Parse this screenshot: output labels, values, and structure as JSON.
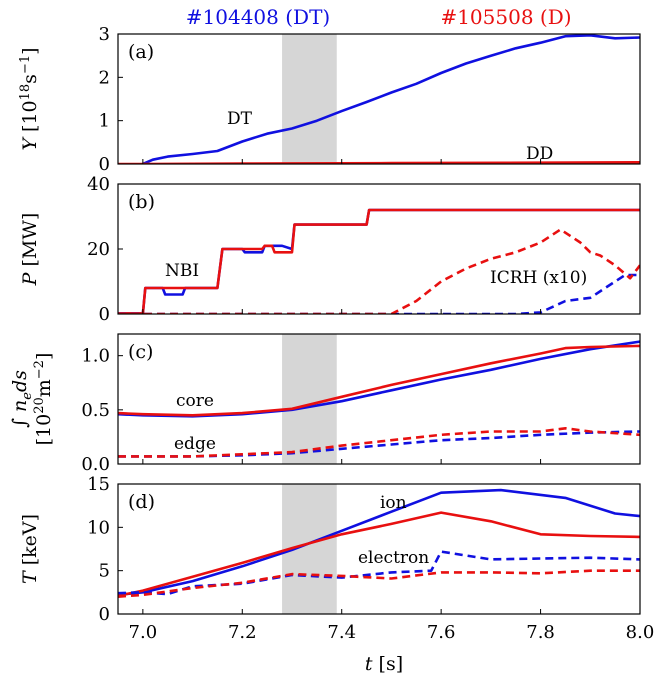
{
  "title_left": "#104408 (DT)",
  "title_right": "#105508 (D)",
  "colors": {
    "dt": "#1010e0",
    "d": "#e81010",
    "shade": "#d6d6d6"
  },
  "xlabel": "t [s]",
  "chart_data": [
    {
      "type": "line",
      "panel": "(a)",
      "ylabel": "Y [10^18 s^-1]",
      "ylim": [
        0,
        3
      ],
      "yticks": [
        "0",
        "1",
        "2",
        "3"
      ],
      "xlim": [
        6.95,
        8.0
      ],
      "shade": [
        7.28,
        7.39
      ],
      "annotations": [
        "DT",
        "DD"
      ],
      "series": [
        {
          "name": "DT",
          "color": "dt",
          "dash": false,
          "points": [
            [
              7.0,
              0.0
            ],
            [
              7.02,
              0.1
            ],
            [
              7.05,
              0.17
            ],
            [
              7.1,
              0.23
            ],
            [
              7.15,
              0.3
            ],
            [
              7.2,
              0.52
            ],
            [
              7.25,
              0.7
            ],
            [
              7.3,
              0.82
            ],
            [
              7.35,
              1.0
            ],
            [
              7.4,
              1.22
            ],
            [
              7.45,
              1.43
            ],
            [
              7.5,
              1.65
            ],
            [
              7.55,
              1.85
            ],
            [
              7.6,
              2.1
            ],
            [
              7.65,
              2.32
            ],
            [
              7.7,
              2.5
            ],
            [
              7.75,
              2.67
            ],
            [
              7.8,
              2.8
            ],
            [
              7.85,
              2.95
            ],
            [
              7.9,
              2.97
            ],
            [
              7.95,
              2.9
            ],
            [
              8.0,
              2.92
            ]
          ]
        },
        {
          "name": "DD",
          "color": "d",
          "dash": false,
          "points": [
            [
              6.95,
              0.0
            ],
            [
              7.0,
              0.0
            ],
            [
              7.2,
              0.01
            ],
            [
              7.5,
              0.02
            ],
            [
              7.8,
              0.03
            ],
            [
              8.0,
              0.04
            ]
          ]
        }
      ]
    },
    {
      "type": "line",
      "panel": "(b)",
      "ylabel": "P [MW]",
      "ylim": [
        0,
        40
      ],
      "yticks": [
        "0",
        "20",
        "40"
      ],
      "xlim": [
        6.95,
        8.0
      ],
      "shade": null,
      "annotations": [
        "NBI",
        "ICRH (x10)"
      ],
      "series": [
        {
          "name": "NBI DT",
          "color": "dt",
          "dash": false,
          "points": [
            [
              6.95,
              0.2
            ],
            [
              7.0,
              0.2
            ],
            [
              7.005,
              8
            ],
            [
              7.04,
              8
            ],
            [
              7.045,
              6
            ],
            [
              7.08,
              6
            ],
            [
              7.085,
              8
            ],
            [
              7.15,
              8
            ],
            [
              7.16,
              20
            ],
            [
              7.2,
              20
            ],
            [
              7.205,
              19
            ],
            [
              7.24,
              19
            ],
            [
              7.245,
              21
            ],
            [
              7.28,
              21
            ],
            [
              7.3,
              20
            ],
            [
              7.305,
              27.5
            ],
            [
              7.45,
              27.5
            ],
            [
              7.455,
              32
            ],
            [
              8.0,
              32
            ]
          ]
        },
        {
          "name": "NBI D",
          "color": "d",
          "dash": false,
          "points": [
            [
              6.95,
              0.2
            ],
            [
              7.0,
              0.2
            ],
            [
              7.005,
              8
            ],
            [
              7.15,
              8
            ],
            [
              7.16,
              20
            ],
            [
              7.24,
              20
            ],
            [
              7.245,
              21
            ],
            [
              7.26,
              21
            ],
            [
              7.265,
              19
            ],
            [
              7.3,
              19
            ],
            [
              7.305,
              27.5
            ],
            [
              7.45,
              27.5
            ],
            [
              7.455,
              32
            ],
            [
              8.0,
              32
            ]
          ]
        },
        {
          "name": "ICRH DT",
          "color": "dt",
          "dash": true,
          "points": [
            [
              6.95,
              0
            ],
            [
              7.75,
              0
            ],
            [
              7.8,
              0.5
            ],
            [
              7.85,
              4
            ],
            [
              7.9,
              5
            ],
            [
              7.93,
              8
            ],
            [
              7.97,
              12
            ],
            [
              8.0,
              12
            ]
          ]
        },
        {
          "name": "ICRH D",
          "color": "d",
          "dash": true,
          "points": [
            [
              6.95,
              0
            ],
            [
              7.5,
              0
            ],
            [
              7.55,
              4
            ],
            [
              7.6,
              10
            ],
            [
              7.65,
              14
            ],
            [
              7.7,
              17
            ],
            [
              7.75,
              19
            ],
            [
              7.8,
              22
            ],
            [
              7.84,
              26
            ],
            [
              7.88,
              22
            ],
            [
              7.9,
              19
            ],
            [
              7.92,
              18
            ],
            [
              7.95,
              15
            ],
            [
              7.98,
              11
            ],
            [
              8.0,
              15
            ]
          ]
        }
      ]
    },
    {
      "type": "line",
      "panel": "(c)",
      "ylabel": "∫ n_e ds [10^20 m^-2]",
      "ylim": [
        0,
        1.2
      ],
      "yticks": [
        "0.0",
        "0.5",
        "1.0"
      ],
      "xlim": [
        6.95,
        8.0
      ],
      "shade": [
        7.28,
        7.39
      ],
      "annotations": [
        "core",
        "edge"
      ],
      "series": [
        {
          "name": "core DT",
          "color": "dt",
          "dash": false,
          "points": [
            [
              6.95,
              0.46
            ],
            [
              7.0,
              0.45
            ],
            [
              7.1,
              0.44
            ],
            [
              7.2,
              0.46
            ],
            [
              7.3,
              0.5
            ],
            [
              7.4,
              0.58
            ],
            [
              7.5,
              0.68
            ],
            [
              7.6,
              0.78
            ],
            [
              7.7,
              0.87
            ],
            [
              7.8,
              0.97
            ],
            [
              7.9,
              1.06
            ],
            [
              8.0,
              1.13
            ]
          ]
        },
        {
          "name": "core D",
          "color": "d",
          "dash": false,
          "points": [
            [
              6.95,
              0.47
            ],
            [
              7.0,
              0.46
            ],
            [
              7.1,
              0.45
            ],
            [
              7.2,
              0.47
            ],
            [
              7.3,
              0.51
            ],
            [
              7.4,
              0.62
            ],
            [
              7.5,
              0.73
            ],
            [
              7.6,
              0.83
            ],
            [
              7.7,
              0.93
            ],
            [
              7.8,
              1.02
            ],
            [
              7.85,
              1.07
            ],
            [
              7.9,
              1.08
            ],
            [
              8.0,
              1.09
            ]
          ]
        },
        {
          "name": "edge DT",
          "color": "dt",
          "dash": true,
          "points": [
            [
              6.95,
              0.07
            ],
            [
              7.1,
              0.07
            ],
            [
              7.2,
              0.08
            ],
            [
              7.3,
              0.1
            ],
            [
              7.4,
              0.14
            ],
            [
              7.5,
              0.18
            ],
            [
              7.6,
              0.22
            ],
            [
              7.7,
              0.24
            ],
            [
              7.8,
              0.27
            ],
            [
              7.9,
              0.29
            ],
            [
              8.0,
              0.3
            ]
          ]
        },
        {
          "name": "edge D",
          "color": "d",
          "dash": true,
          "points": [
            [
              6.95,
              0.07
            ],
            [
              7.1,
              0.07
            ],
            [
              7.2,
              0.09
            ],
            [
              7.3,
              0.11
            ],
            [
              7.4,
              0.17
            ],
            [
              7.5,
              0.22
            ],
            [
              7.6,
              0.27
            ],
            [
              7.7,
              0.3
            ],
            [
              7.8,
              0.3
            ],
            [
              7.85,
              0.33
            ],
            [
              7.9,
              0.3
            ],
            [
              8.0,
              0.27
            ]
          ]
        }
      ]
    },
    {
      "type": "line",
      "panel": "(d)",
      "ylabel": "T [keV]",
      "ylim": [
        0,
        15
      ],
      "yticks": [
        "0",
        "5",
        "10",
        "15"
      ],
      "xlim": [
        6.95,
        8.0
      ],
      "shade": [
        7.28,
        7.39
      ],
      "annotations": [
        "ion",
        "electron"
      ],
      "series": [
        {
          "name": "ion DT",
          "color": "dt",
          "dash": false,
          "points": [
            [
              6.95,
              2.2
            ],
            [
              7.0,
              2.5
            ],
            [
              7.1,
              3.8
            ],
            [
              7.2,
              5.5
            ],
            [
              7.3,
              7.4
            ],
            [
              7.4,
              9.6
            ],
            [
              7.5,
              11.8
            ],
            [
              7.6,
              14.0
            ],
            [
              7.72,
              14.3
            ],
            [
              7.85,
              13.4
            ],
            [
              7.95,
              11.6
            ],
            [
              8.0,
              11.3
            ]
          ]
        },
        {
          "name": "ion D",
          "color": "d",
          "dash": false,
          "points": [
            [
              6.95,
              2.1
            ],
            [
              7.0,
              2.7
            ],
            [
              7.1,
              4.3
            ],
            [
              7.2,
              5.9
            ],
            [
              7.3,
              7.6
            ],
            [
              7.4,
              9.2
            ],
            [
              7.5,
              10.4
            ],
            [
              7.6,
              11.7
            ],
            [
              7.7,
              10.7
            ],
            [
              7.8,
              9.2
            ],
            [
              7.9,
              9.0
            ],
            [
              8.0,
              8.9
            ]
          ]
        },
        {
          "name": "electron DT",
          "color": "dt",
          "dash": true,
          "points": [
            [
              6.95,
              2.4
            ],
            [
              7.0,
              2.5
            ],
            [
              7.05,
              2.3
            ],
            [
              7.1,
              3.2
            ],
            [
              7.2,
              3.5
            ],
            [
              7.3,
              4.5
            ],
            [
              7.4,
              4.2
            ],
            [
              7.5,
              4.8
            ],
            [
              7.58,
              5.0
            ],
            [
              7.6,
              7.2
            ],
            [
              7.7,
              6.3
            ],
            [
              7.8,
              6.4
            ],
            [
              7.9,
              6.5
            ],
            [
              8.0,
              6.3
            ]
          ]
        },
        {
          "name": "electron D",
          "color": "d",
          "dash": true,
          "points": [
            [
              6.95,
              2.0
            ],
            [
              7.0,
              2.2
            ],
            [
              7.1,
              3.0
            ],
            [
              7.2,
              3.6
            ],
            [
              7.3,
              4.6
            ],
            [
              7.4,
              4.4
            ],
            [
              7.5,
              4.1
            ],
            [
              7.6,
              4.8
            ],
            [
              7.7,
              4.8
            ],
            [
              7.8,
              4.7
            ],
            [
              7.9,
              5.0
            ],
            [
              8.0,
              5.0
            ]
          ]
        }
      ]
    }
  ],
  "xticks": [
    "7.0",
    "7.2",
    "7.4",
    "7.6",
    "7.8",
    "8.0"
  ]
}
